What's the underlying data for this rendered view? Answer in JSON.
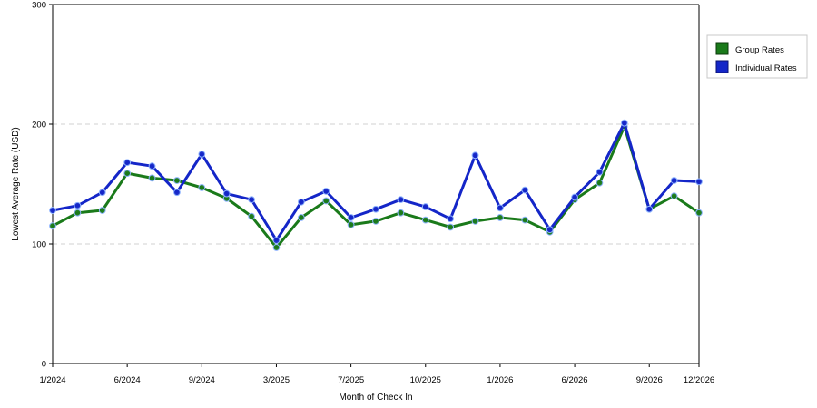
{
  "chart_data": {
    "type": "line",
    "xlabel": "Month of Check In",
    "ylabel": "Lowest Average Rate (USD)",
    "ylim": [
      0,
      300
    ],
    "yticks": [
      0,
      100,
      200,
      300
    ],
    "grid": "dashed horizontal at 100 and 200",
    "legend_position": "right",
    "x_ticks": [
      {
        "label": "1/2024",
        "index": 0
      },
      {
        "label": "6/2024",
        "index": 3
      },
      {
        "label": "9/2024",
        "index": 6
      },
      {
        "label": "3/2025",
        "index": 9
      },
      {
        "label": "7/2025",
        "index": 12
      },
      {
        "label": "10/2025",
        "index": 15
      },
      {
        "label": "1/2026",
        "index": 18
      },
      {
        "label": "6/2026",
        "index": 21
      },
      {
        "label": "9/2026",
        "index": 24
      },
      {
        "label": "12/2026",
        "index": 26
      }
    ],
    "series": [
      {
        "name": "Group Rates",
        "color": "#1a7a1a",
        "values": [
          115,
          126,
          128,
          159,
          155,
          153,
          147,
          138,
          123,
          97,
          122,
          136,
          116,
          119,
          126,
          120,
          114,
          119,
          122,
          120,
          110,
          137,
          151,
          198,
          129,
          140,
          126
        ]
      },
      {
        "name": "Individual Rates",
        "color": "#1426c8",
        "values": [
          128,
          132,
          143,
          168,
          165,
          143,
          175,
          142,
          137,
          103,
          135,
          144,
          122,
          129,
          137,
          131,
          121,
          174,
          130,
          145,
          112,
          139,
          160,
          201,
          129,
          153,
          152
        ]
      }
    ]
  }
}
